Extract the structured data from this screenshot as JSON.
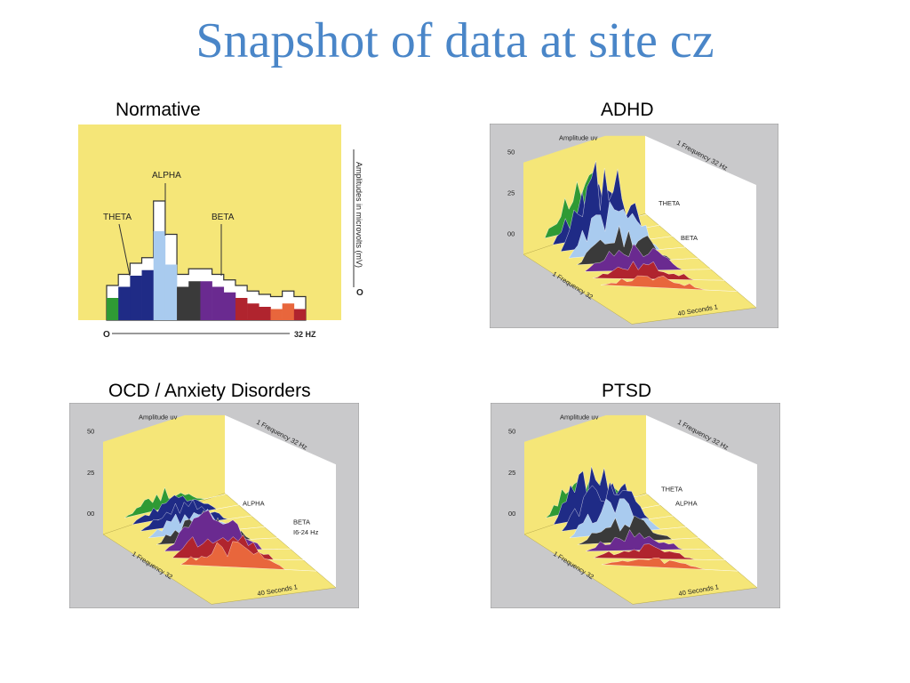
{
  "slide": {
    "title": "Snapshot of data at site cz"
  },
  "colors": {
    "title": "#4a86c8",
    "panel_bg": "#c9c9cb",
    "yellow": "#f5e678",
    "theta": "#2f9a34",
    "theta_dark": "#1f2b86",
    "alpha": "#a9cbef",
    "beta": "#3a3a3a",
    "beta_purple": "#6a2a90",
    "high_beta": "#b0242e",
    "gamma": "#e8663c"
  },
  "panels": [
    {
      "id": "normative",
      "label": "Normative"
    },
    {
      "id": "adhd",
      "label": "ADHD"
    },
    {
      "id": "ocd",
      "label": "OCD / Anxiety Disorders"
    },
    {
      "id": "ptsd",
      "label": "PTSD"
    }
  ],
  "chart_data": [
    {
      "type": "bar",
      "panel": "Normative",
      "xlabel": "32 HZ",
      "x_origin": "O",
      "ylabel": "Amplitudes in microvolts (mV)",
      "y_origin": "O",
      "annotations": [
        "THETA",
        "ALPHA",
        "BETA"
      ],
      "values": [
        2,
        3,
        4,
        4.5,
        8,
        5,
        3,
        3.5,
        3.5,
        3,
        2.5,
        2,
        1.5,
        1.2,
        1,
        1.5,
        1
      ],
      "bar_colors": [
        "#2f9a34",
        "#1f2b86",
        "#1f2b86",
        "#1f2b86",
        "#a9cbef",
        "#a9cbef",
        "#3a3a3a",
        "#3a3a3a",
        "#6a2a90",
        "#6a2a90",
        "#6a2a90",
        "#b0242e",
        "#b0242e",
        "#b0242e",
        "#e8663c",
        "#e8663c",
        "#b0242e"
      ]
    },
    {
      "type": "area",
      "panel": "ADHD",
      "ylabel": "Amplitude uv",
      "y_ticks": [
        "50",
        "25",
        "00"
      ],
      "x_label": "1 Frequency 32",
      "depth_label": "40 Seconds 1",
      "back_label": "1 Frequency 32 Hz",
      "band_labels": [
        "THETA",
        "BETA"
      ],
      "band_levels": [
        0.55,
        0.55,
        0.88,
        0.55,
        0.35,
        0.28,
        0.18,
        0.12
      ]
    },
    {
      "type": "area",
      "panel": "OCD / Anxiety Disorders",
      "ylabel": "Amplitude uv",
      "y_ticks": [
        "50",
        "25",
        "00"
      ],
      "x_label": "1 Frequency 32",
      "depth_label": "40 Seconds 1",
      "back_label": "1 Frequency 32 Hz",
      "band_labels": [
        "ALPHA",
        "BETA",
        "I6-24 Hz"
      ],
      "band_levels": [
        0.2,
        0.22,
        0.24,
        0.26,
        0.3,
        0.38,
        0.34,
        0.26
      ]
    },
    {
      "type": "area",
      "panel": "PTSD",
      "ylabel": "Amplitude uv",
      "y_ticks": [
        "50",
        "25",
        "00"
      ],
      "x_label": "1 Frequency 32",
      "depth_label": "40 Seconds 1",
      "back_label": "1 Frequency 32 Hz",
      "band_labels": [
        "THETA",
        "ALPHA"
      ],
      "band_levels": [
        0.4,
        0.58,
        0.48,
        0.36,
        0.26,
        0.2,
        0.14,
        0.1
      ]
    }
  ]
}
